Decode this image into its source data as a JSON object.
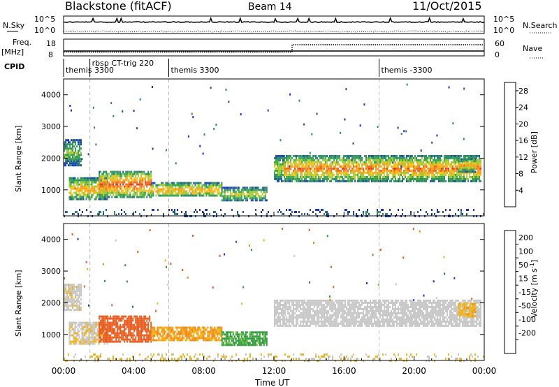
{
  "header": {
    "station": "Blackstone (fitACF)",
    "beam": "Beam 14",
    "date": "11/Oct/2015"
  },
  "noise_panel": {
    "left_label": "N.Sky",
    "right_label": "N.Search",
    "tick_high": "10^5",
    "tick_low": "10^0"
  },
  "freq_panel": {
    "left_label_1": "Freq.",
    "left_label_2": "[MHz]",
    "right_label": "Nave",
    "left_ticks": [
      "18",
      "8"
    ],
    "right_ticks": [
      "60",
      "0"
    ]
  },
  "cpid_panel": {
    "label": "CPID",
    "modes": [
      {
        "start_hour": 0.0,
        "text": "themis 3300"
      },
      {
        "start_hour": 1.5,
        "text": "rbsp CT-trig 220"
      },
      {
        "start_hour": 6.0,
        "text": "themis 3300"
      },
      {
        "start_hour": 18.0,
        "text": "themis -3300"
      }
    ]
  },
  "power_panel": {
    "ylabel": "Slant Range [km]",
    "yticks": [
      "4000",
      "3000",
      "2000",
      "1000"
    ],
    "colorbar_title": "Power [dB]",
    "colorbar_ticks": [
      "28",
      "24",
      "20",
      "16",
      "12",
      "8",
      "4"
    ],
    "colors": [
      "#1a2bd9",
      "#1e4fa8",
      "#2f8a6a",
      "#3aa84a",
      "#9ccb3a",
      "#f0c41c",
      "#f5a023",
      "#ef6b1e",
      "#e43a1c",
      "#d91a1a"
    ]
  },
  "velocity_panel": {
    "ylabel": "Slant Range [km]",
    "yticks": [
      "4000",
      "3000",
      "2000",
      "1000"
    ],
    "colorbar_title": "Velocity [m s^-1]",
    "colorbar_ticks": [
      "200",
      "100",
      "50",
      "15",
      "-15",
      "-50",
      "-100",
      "-200"
    ],
    "colors": [
      "#2a2fc0",
      "#2f58b8",
      "#2f9a3a",
      "#6fc43c",
      "#c8c8c8",
      "#f0b41c",
      "#f08a1a",
      "#ea5a1c",
      "#d91a1a"
    ]
  },
  "x_axis": {
    "label": "Time UT",
    "ticks": [
      "00:00",
      "04:00",
      "08:00",
      "12:00",
      "16:00",
      "20:00",
      "00:00"
    ]
  },
  "chart_data": {
    "type": "heatmap",
    "title": "Blackstone (fitACF)",
    "subtitle": "Beam 14",
    "xlabel": "Time UT",
    "ylabel": "Slant Range [km]",
    "xlim": [
      0,
      24
    ],
    "ylim": [
      180,
      4500
    ],
    "power_range_db": [
      0,
      30
    ],
    "velocity_range": [
      -250,
      250
    ],
    "echo_regions": [
      {
        "t_start": 0.0,
        "t_end": 1.0,
        "range_min": 1800,
        "range_max": 2600,
        "power_db": 12,
        "velocity": -5
      },
      {
        "t_start": 0.3,
        "t_end": 2.5,
        "range_min": 700,
        "range_max": 1400,
        "power_db": 18,
        "velocity": -10
      },
      {
        "t_start": 2.0,
        "t_end": 5.0,
        "range_min": 800,
        "range_max": 1600,
        "power_db": 22,
        "velocity": -120
      },
      {
        "t_start": 5.0,
        "t_end": 9.0,
        "range_min": 800,
        "range_max": 1250,
        "power_db": 18,
        "velocity": -50
      },
      {
        "t_start": 9.0,
        "t_end": 11.6,
        "range_min": 700,
        "range_max": 1100,
        "power_db": 14,
        "velocity": 40
      },
      {
        "t_start": 12.0,
        "t_end": 12.6,
        "range_min": 1300,
        "range_max": 2100,
        "power_db": 14,
        "velocity": 0
      },
      {
        "t_start": 12.6,
        "t_end": 23.8,
        "range_min": 1300,
        "range_max": 2100,
        "power_db": 20,
        "velocity": 0
      },
      {
        "t_start": 22.5,
        "t_end": 23.5,
        "range_min": 1600,
        "range_max": 2000,
        "power_db": 18,
        "velocity": -40
      },
      {
        "t_start": 0.0,
        "t_end": 24.0,
        "range_min": 180,
        "range_max": 400,
        "power_db": 6,
        "velocity": -20
      }
    ]
  }
}
